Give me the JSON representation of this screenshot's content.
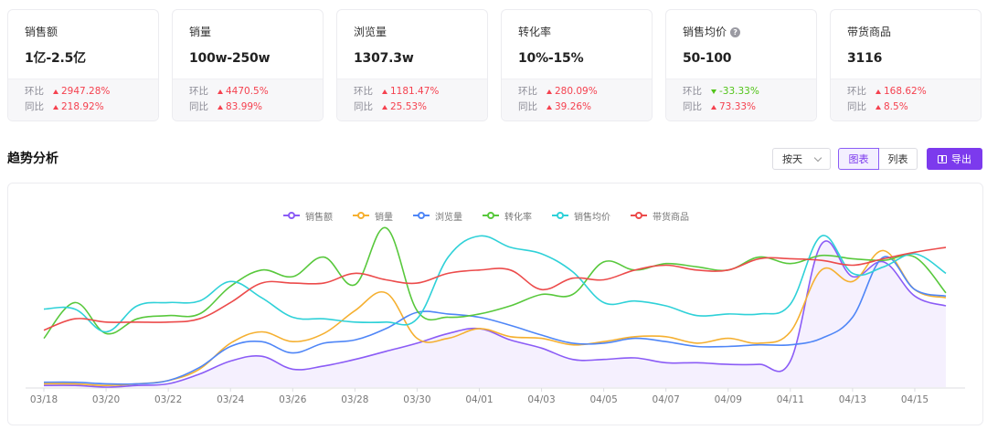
{
  "cards": [
    {
      "label": "销售额",
      "value": "1亿-2.5亿",
      "help": false,
      "hb_label": "环比",
      "hb_dir": "up",
      "hb_value": "2947.28%",
      "tb_label": "同比",
      "tb_dir": "up",
      "tb_value": "218.92%"
    },
    {
      "label": "销量",
      "value": "100w-250w",
      "help": false,
      "hb_label": "环比",
      "hb_dir": "up",
      "hb_value": "4470.5%",
      "tb_label": "同比",
      "tb_dir": "up",
      "tb_value": "83.99%"
    },
    {
      "label": "浏览量",
      "value": "1307.3w",
      "help": false,
      "hb_label": "环比",
      "hb_dir": "up",
      "hb_value": "1181.47%",
      "tb_label": "同比",
      "tb_dir": "up",
      "tb_value": "25.53%"
    },
    {
      "label": "转化率",
      "value": "10%-15%",
      "help": false,
      "hb_label": "环比",
      "hb_dir": "up",
      "hb_value": "280.09%",
      "tb_label": "同比",
      "tb_dir": "up",
      "tb_value": "39.26%"
    },
    {
      "label": "销售均价",
      "value": "50-100",
      "help": true,
      "hb_label": "环比",
      "hb_dir": "down",
      "hb_value": "-33.33%",
      "tb_label": "同比",
      "tb_dir": "up",
      "tb_value": "73.33%"
    },
    {
      "label": "带货商品",
      "value": "3116",
      "help": false,
      "hb_label": "环比",
      "hb_dir": "up",
      "hb_value": "168.62%",
      "tb_label": "同比",
      "tb_dir": "up",
      "tb_value": "8.5%"
    }
  ],
  "trend": {
    "title": "趋势分析",
    "period_select": "按天",
    "view_chart_label": "图表",
    "view_list_label": "列表",
    "export_label": "导出"
  },
  "colors": {
    "accent": "#7c3aed",
    "up": "#f5414f",
    "down": "#52c41a"
  },
  "chart_data": {
    "type": "line",
    "x": [
      "03/18",
      "03/19",
      "03/20",
      "03/21",
      "03/22",
      "03/23",
      "03/24",
      "03/25",
      "03/26",
      "03/27",
      "03/28",
      "03/29",
      "03/30",
      "03/31",
      "04/01",
      "04/02",
      "04/03",
      "04/04",
      "04/05",
      "04/06",
      "04/07",
      "04/08",
      "04/09",
      "04/10",
      "04/11",
      "04/12",
      "04/13",
      "04/14",
      "04/15",
      "04/16"
    ],
    "x_tick_labels": [
      "03/18",
      "03/20",
      "03/22",
      "03/24",
      "03/26",
      "03/28",
      "03/30",
      "04/01",
      "04/03",
      "04/05",
      "04/07",
      "04/09",
      "04/11",
      "04/13",
      "04/15"
    ],
    "ylim": [
      0,
      100
    ],
    "grid": false,
    "legend_position": "top-center",
    "series": [
      {
        "name": "销售额",
        "color": "#8b5cf6",
        "area": true,
        "values": [
          1,
          1,
          0,
          1,
          2,
          8,
          16,
          19,
          11,
          13,
          17,
          22,
          27,
          33,
          36,
          29,
          24,
          17,
          17,
          18,
          15,
          15,
          14,
          14,
          16,
          88,
          68,
          77,
          56,
          50
        ]
      },
      {
        "name": "销量",
        "color": "#f5b031",
        "area": false,
        "values": [
          2,
          2,
          1,
          2,
          4,
          11,
          27,
          34,
          28,
          33,
          47,
          58,
          30,
          30,
          36,
          31,
          30,
          26,
          28,
          31,
          31,
          27,
          30,
          27,
          34,
          72,
          65,
          84,
          60,
          55
        ]
      },
      {
        "name": "浏览量",
        "color": "#4f86f7",
        "area": false,
        "values": [
          3,
          3,
          2,
          2,
          4,
          12,
          25,
          28,
          21,
          27,
          29,
          36,
          46,
          45,
          43,
          38,
          32,
          27,
          27,
          30,
          28,
          25,
          25,
          26,
          26,
          30,
          43,
          80,
          60,
          56
        ]
      },
      {
        "name": "转化率",
        "color": "#58c83c",
        "area": false,
        "values": [
          30,
          52,
          33,
          42,
          44,
          45,
          62,
          72,
          68,
          80,
          63,
          98,
          47,
          43,
          45,
          50,
          57,
          57,
          77,
          72,
          76,
          74,
          72,
          80,
          76,
          81,
          79,
          78,
          80,
          58
        ]
      },
      {
        "name": "销售均价",
        "color": "#2fd1d8",
        "area": false,
        "values": [
          48,
          48,
          34,
          50,
          52,
          53,
          65,
          55,
          43,
          42,
          40,
          40,
          42,
          80,
          93,
          86,
          82,
          71,
          52,
          53,
          50,
          44,
          45,
          45,
          51,
          93,
          70,
          74,
          82,
          70
        ]
      },
      {
        "name": "带货商品",
        "color": "#ec4b4b",
        "area": false,
        "values": [
          35,
          42,
          40,
          40,
          40,
          42,
          52,
          64,
          64,
          64,
          70,
          66,
          64,
          70,
          72,
          72,
          60,
          67,
          66,
          72,
          75,
          72,
          72,
          79,
          79,
          78,
          75,
          79,
          83,
          86
        ]
      }
    ]
  }
}
